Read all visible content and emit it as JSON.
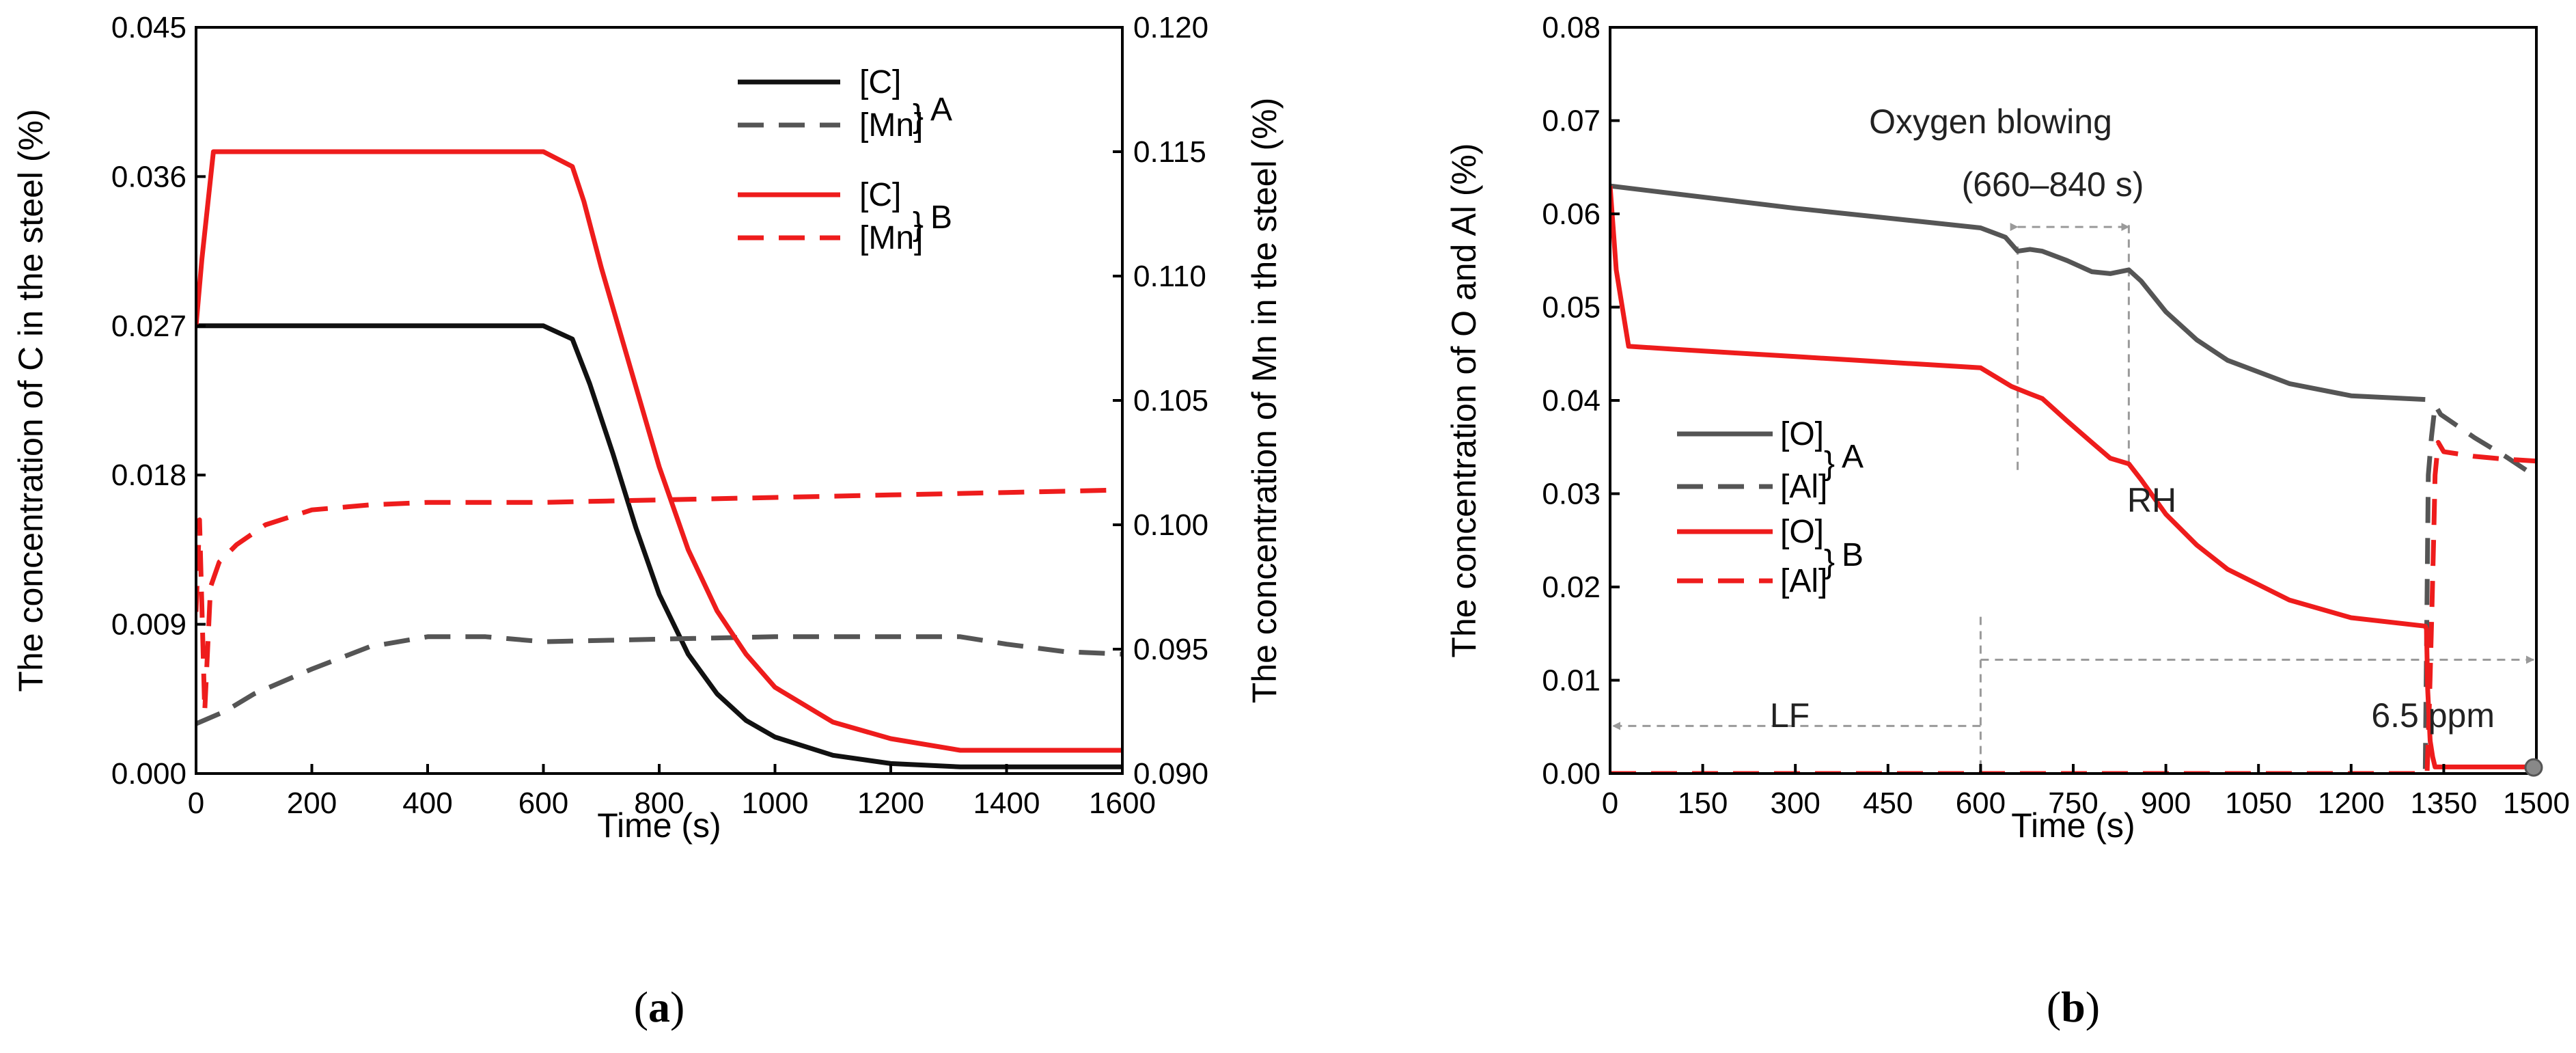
{
  "colors": {
    "black": "#111111",
    "gray": "#555555",
    "red": "#ee1c1c",
    "guide": "#9a9a9a"
  },
  "chart_data": [
    {
      "type": "line",
      "panel": "a",
      "caption": {
        "open": "(",
        "letter": "a",
        "close": ")"
      },
      "xlabel": "Time (s)",
      "ylabel_left": "The concentration of C in the steel (%)",
      "ylabel_right": "The concentration of Mn in the steel (%)",
      "xlim": [
        0,
        1600
      ],
      "ylim_left": [
        0,
        0.045
      ],
      "ylim_right": [
        0.09,
        0.12
      ],
      "x_ticks": [
        "0",
        "200",
        "400",
        "600",
        "800",
        "1000",
        "1200",
        "1400",
        "1600"
      ],
      "y_left_ticks": [
        "0.000",
        "0.009",
        "0.018",
        "0.027",
        "0.036",
        "0.045"
      ],
      "y_right_ticks": [
        "0.090",
        "0.095",
        "0.100",
        "0.105",
        "0.110",
        "0.115",
        "0.120"
      ],
      "legend": [
        {
          "label": "[C]",
          "color": "black",
          "dash": false
        },
        {
          "label": "[Mn]",
          "color": "gray",
          "dash": true,
          "group": "A"
        },
        {
          "label": "[C]",
          "color": "red",
          "dash": false
        },
        {
          "label": "[Mn]",
          "color": "red",
          "dash": true,
          "group": "B"
        }
      ],
      "series": [
        {
          "name": "[C] A",
          "axis": "left",
          "color": "black",
          "dash": false,
          "x": [
            0,
            600,
            650,
            680,
            720,
            760,
            800,
            850,
            900,
            950,
            1000,
            1100,
            1200,
            1320,
            1600
          ],
          "y": [
            0.027,
            0.027,
            0.0262,
            0.0235,
            0.0193,
            0.0148,
            0.0108,
            0.0072,
            0.0048,
            0.0032,
            0.0022,
            0.0011,
            0.0006,
            0.0004,
            0.0004
          ]
        },
        {
          "name": "[Mn] A",
          "axis": "right",
          "color": "gray",
          "dash": true,
          "x": [
            0,
            50,
            100,
            200,
            300,
            400,
            500,
            600,
            800,
            1000,
            1200,
            1320,
            1400,
            1500,
            1600
          ],
          "y": [
            0.092,
            0.0925,
            0.0932,
            0.0942,
            0.0951,
            0.0955,
            0.0955,
            0.0953,
            0.0954,
            0.0955,
            0.0955,
            0.0955,
            0.0952,
            0.0949,
            0.0948
          ]
        },
        {
          "name": "[C] B",
          "axis": "left",
          "color": "red",
          "dash": false,
          "x": [
            0,
            10,
            30,
            600,
            650,
            670,
            700,
            750,
            800,
            850,
            900,
            950,
            1000,
            1100,
            1200,
            1320,
            1600
          ],
          "y": [
            0.027,
            0.031,
            0.0375,
            0.0375,
            0.0366,
            0.0345,
            0.0305,
            0.0245,
            0.0185,
            0.0135,
            0.0098,
            0.0072,
            0.0052,
            0.0031,
            0.0021,
            0.0014,
            0.0014
          ]
        },
        {
          "name": "[Mn] B",
          "axis": "right",
          "color": "red",
          "dash": true,
          "x": [
            0,
            6,
            15,
            25,
            40,
            70,
            120,
            200,
            300,
            400,
            600,
            800,
            1000,
            1200,
            1400,
            1600
          ],
          "y": [
            0.0965,
            0.1002,
            0.0925,
            0.0975,
            0.0985,
            0.0992,
            0.1,
            0.1006,
            0.1008,
            0.1009,
            0.1009,
            0.101,
            0.1011,
            0.1012,
            0.1013,
            0.1014
          ]
        }
      ]
    },
    {
      "type": "line",
      "panel": "b",
      "caption": {
        "open": "(",
        "letter": "b",
        "close": ")"
      },
      "xlabel": "Time (s)",
      "ylabel": "The concentration of O and Al (%)",
      "xlim": [
        0,
        1500
      ],
      "ylim": [
        0,
        0.08
      ],
      "x_ticks": [
        "0",
        "150",
        "300",
        "450",
        "600",
        "750",
        "900",
        "1050",
        "1200",
        "1350",
        "1500"
      ],
      "y_ticks": [
        "0.00",
        "0.01",
        "0.02",
        "0.03",
        "0.04",
        "0.05",
        "0.06",
        "0.07",
        "0.08"
      ],
      "legend": [
        {
          "label": "[O]",
          "color": "gray",
          "dash": false
        },
        {
          "label": "[Al]",
          "color": "gray",
          "dash": true,
          "group": "A"
        },
        {
          "label": "[O]",
          "color": "red",
          "dash": false
        },
        {
          "label": "[Al]",
          "color": "red",
          "dash": true,
          "group": "B"
        }
      ],
      "annotations": {
        "oxygen_title": "Oxygen blowing",
        "oxygen_range": "(660–840 s)",
        "oxygen_start": 660,
        "oxygen_end": 840,
        "rh": "RH",
        "lf": "LF",
        "lf_rh_boundary": 600,
        "ppm_label": "6.5 ppm",
        "ppm_point": [
          1500,
          0.00065
        ]
      },
      "series": [
        {
          "name": "[O] A",
          "color": "gray",
          "dash": false,
          "x": [
            0,
            100,
            200,
            300,
            400,
            500,
            600,
            640,
            660,
            680,
            700,
            740,
            780,
            810,
            840,
            860,
            900,
            950,
            1000,
            1100,
            1200,
            1320
          ],
          "y": [
            0.063,
            0.0622,
            0.0614,
            0.0606,
            0.0599,
            0.0592,
            0.0585,
            0.0575,
            0.056,
            0.0562,
            0.056,
            0.055,
            0.0538,
            0.0536,
            0.054,
            0.0528,
            0.0495,
            0.0465,
            0.0443,
            0.0418,
            0.0405,
            0.0401
          ]
        },
        {
          "name": "[Al] A",
          "color": "gray",
          "dash": true,
          "x": [
            0,
            1320,
            1325,
            1330,
            1336,
            1345,
            1400,
            1450,
            1500
          ],
          "y": [
            0.0,
            0.0,
            0.032,
            0.036,
            0.0395,
            0.0385,
            0.036,
            0.034,
            0.0318
          ]
        },
        {
          "name": "[O] B",
          "color": "red",
          "dash": false,
          "x": [
            0,
            10,
            30,
            100,
            200,
            300,
            400,
            500,
            600,
            650,
            680,
            700,
            740,
            780,
            810,
            840,
            860,
            900,
            950,
            1000,
            1100,
            1200,
            1320,
            1322,
            1324,
            1328,
            1332,
            1336,
            1400,
            1500
          ],
          "y": [
            0.063,
            0.054,
            0.0458,
            0.0455,
            0.0451,
            0.0447,
            0.0443,
            0.0439,
            0.0435,
            0.0415,
            0.0407,
            0.0402,
            0.0378,
            0.0355,
            0.0338,
            0.0332,
            0.0315,
            0.0278,
            0.0245,
            0.0219,
            0.0186,
            0.0167,
            0.0158,
            0.0155,
            0.009,
            0.0035,
            0.0018,
            0.0007,
            0.0007,
            0.0007
          ]
        },
        {
          "name": "[Al] B",
          "color": "red",
          "dash": true,
          "x": [
            0,
            1320,
            1323,
            1327,
            1331,
            1334,
            1336,
            1341,
            1350,
            1400,
            1450,
            1500
          ],
          "y": [
            0.0,
            0.0,
            0.0,
            0.008,
            0.018,
            0.026,
            0.032,
            0.0355,
            0.0345,
            0.034,
            0.0337,
            0.0335
          ]
        }
      ]
    }
  ]
}
